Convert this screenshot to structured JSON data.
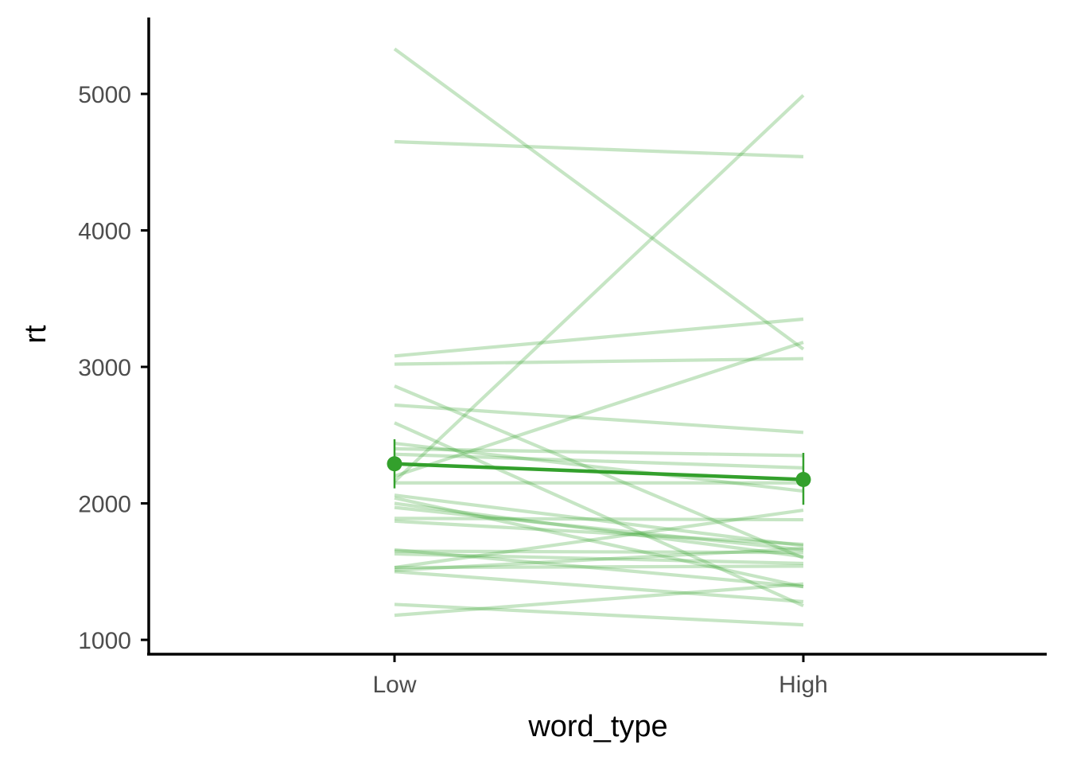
{
  "chart_data": {
    "type": "line",
    "title": "",
    "xlabel": "word_type",
    "ylabel": "rt",
    "categories": [
      "Low",
      "High"
    ],
    "ylim": [
      950,
      5530
    ],
    "yticks": [
      1000,
      2000,
      3000,
      4000,
      5000
    ],
    "grid": false,
    "legend": "none",
    "colors": {
      "subject_line": "#33a02c",
      "mean_line": "#33a02c",
      "axis": "#000000",
      "tick_label": "#4d4d4d"
    },
    "subject_lines": [
      [
        5330,
        3130
      ],
      [
        4650,
        4540
      ],
      [
        3080,
        3350
      ],
      [
        3020,
        3060
      ],
      [
        2860,
        1600
      ],
      [
        2720,
        2520
      ],
      [
        2590,
        1250
      ],
      [
        2440,
        2090
      ],
      [
        2400,
        2350
      ],
      [
        2360,
        2260
      ],
      [
        2200,
        3180
      ],
      [
        2160,
        4990
      ],
      [
        2150,
        2150
      ],
      [
        2060,
        1690
      ],
      [
        2040,
        1390
      ],
      [
        2000,
        1610
      ],
      [
        1970,
        1660
      ],
      [
        1890,
        1880
      ],
      [
        1870,
        1700
      ],
      [
        1660,
        1390
      ],
      [
        1650,
        1640
      ],
      [
        1630,
        1560
      ],
      [
        1530,
        1950
      ],
      [
        1510,
        1670
      ],
      [
        1500,
        1280
      ],
      [
        1260,
        1110
      ],
      [
        1180,
        1410
      ],
      [
        1530,
        1540
      ]
    ],
    "mean_line": {
      "values": [
        2290,
        2175
      ],
      "error_low": [
        2110,
        1990
      ],
      "error_high": [
        2470,
        2370
      ]
    }
  }
}
